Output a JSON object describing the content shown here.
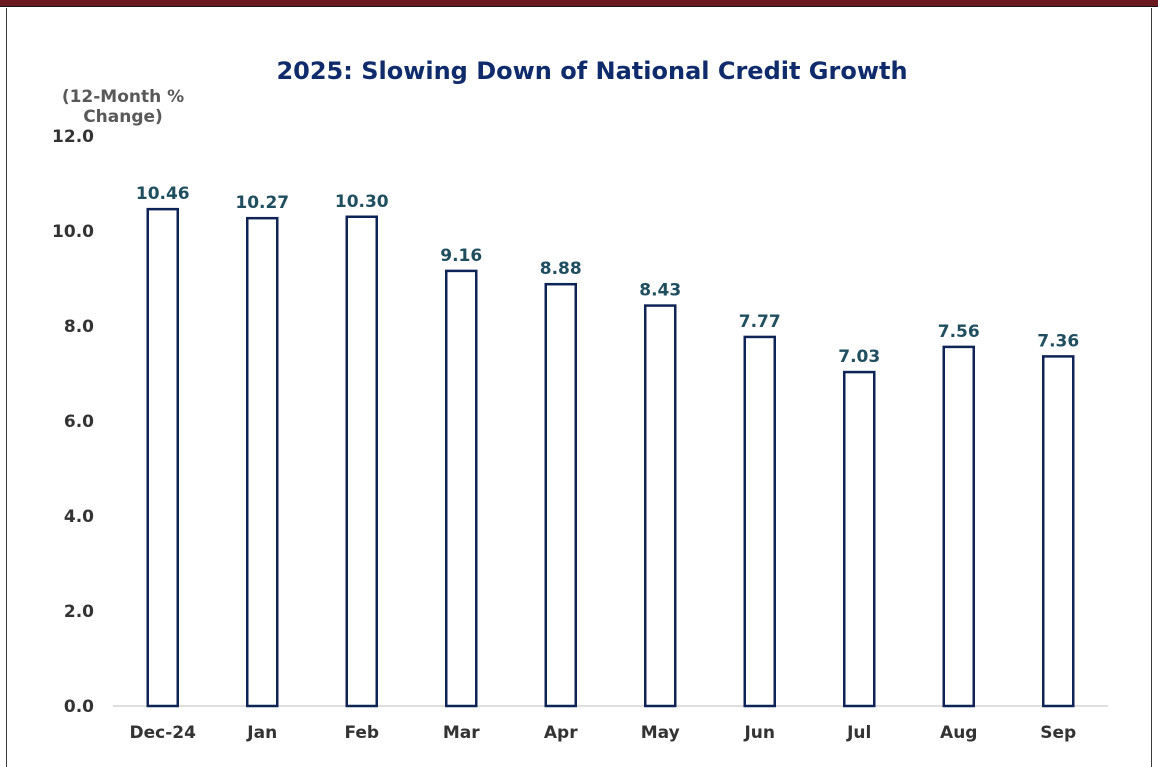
{
  "chart_data": {
    "type": "bar",
    "title": "2025: Slowing Down of National Credit Growth",
    "ylabel_lines": [
      "(12-Month %",
      "Change)"
    ],
    "categories": [
      "Dec-24",
      "Jan",
      "Feb",
      "Mar",
      "Apr",
      "May",
      "Jun",
      "Jul",
      "Aug",
      "Sep"
    ],
    "values": [
      10.46,
      10.27,
      10.3,
      9.16,
      8.88,
      8.43,
      7.77,
      7.03,
      7.56,
      7.36
    ],
    "value_labels": [
      "10.46",
      "10.27",
      "10.30",
      "9.16",
      "8.88",
      "8.43",
      "7.77",
      "7.03",
      "7.56",
      "7.36"
    ],
    "yticks": [
      "0.0",
      "2.0",
      "4.0",
      "6.0",
      "8.0",
      "10.0",
      "12.0"
    ],
    "ylim": [
      0,
      12
    ],
    "grid": false,
    "legend": false,
    "colors": {
      "bar_outline": "#0f2456",
      "bar_fill": "#ffffff",
      "title": "#0f2b6b",
      "data_label": "#1f4e5f",
      "header_bar": "#6b1a22"
    }
  }
}
